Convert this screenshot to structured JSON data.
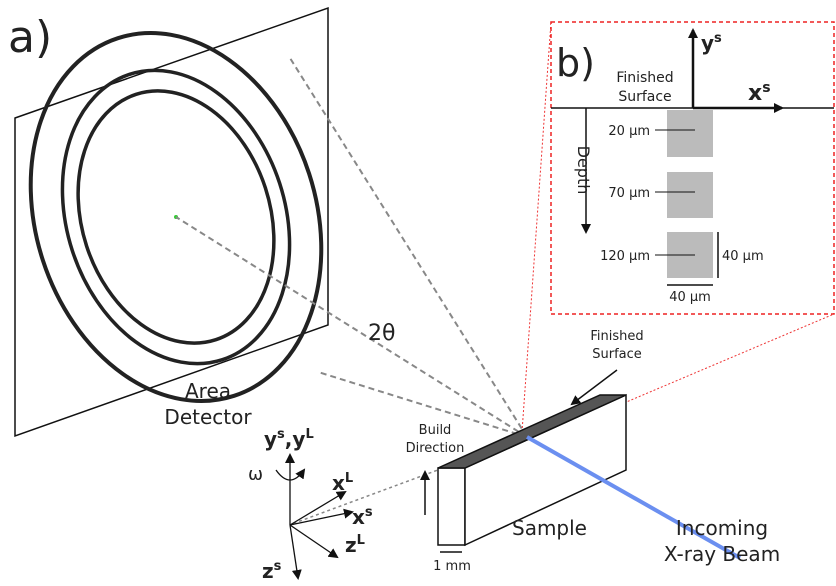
{
  "panel_a": {
    "label": "a)",
    "detector_label": [
      "Area",
      "Detector"
    ],
    "angle": "2θ",
    "finished_surface": [
      "Finished",
      "Surface"
    ],
    "build_direction": [
      "Build",
      "Direction"
    ],
    "sample": "Sample",
    "beam": [
      "Incoming",
      "X-ray Beam"
    ],
    "scale_bar": "1 mm",
    "rotation": "ω",
    "axes": {
      "y": [
        {
          "base": "y",
          "sup": "s"
        },
        {
          "base": "y",
          "sup": "L"
        }
      ],
      "separator": ",",
      "xL": {
        "base": "x",
        "sup": "L"
      },
      "xs": {
        "base": "x",
        "sup": "s"
      },
      "zL": {
        "base": "z",
        "sup": "L"
      },
      "zs": {
        "base": "z",
        "sup": "s"
      }
    }
  },
  "panel_b": {
    "label": "b)",
    "y_axis": {
      "base": "y",
      "sup": "s"
    },
    "x_axis": {
      "base": "x",
      "sup": "s"
    },
    "finished_surface": [
      "Finished",
      "Surface"
    ],
    "depth": "Depth",
    "depths": [
      "20 μm",
      "70 μm",
      "120 μm"
    ],
    "height": "40 μm",
    "width": "40 μm"
  }
}
